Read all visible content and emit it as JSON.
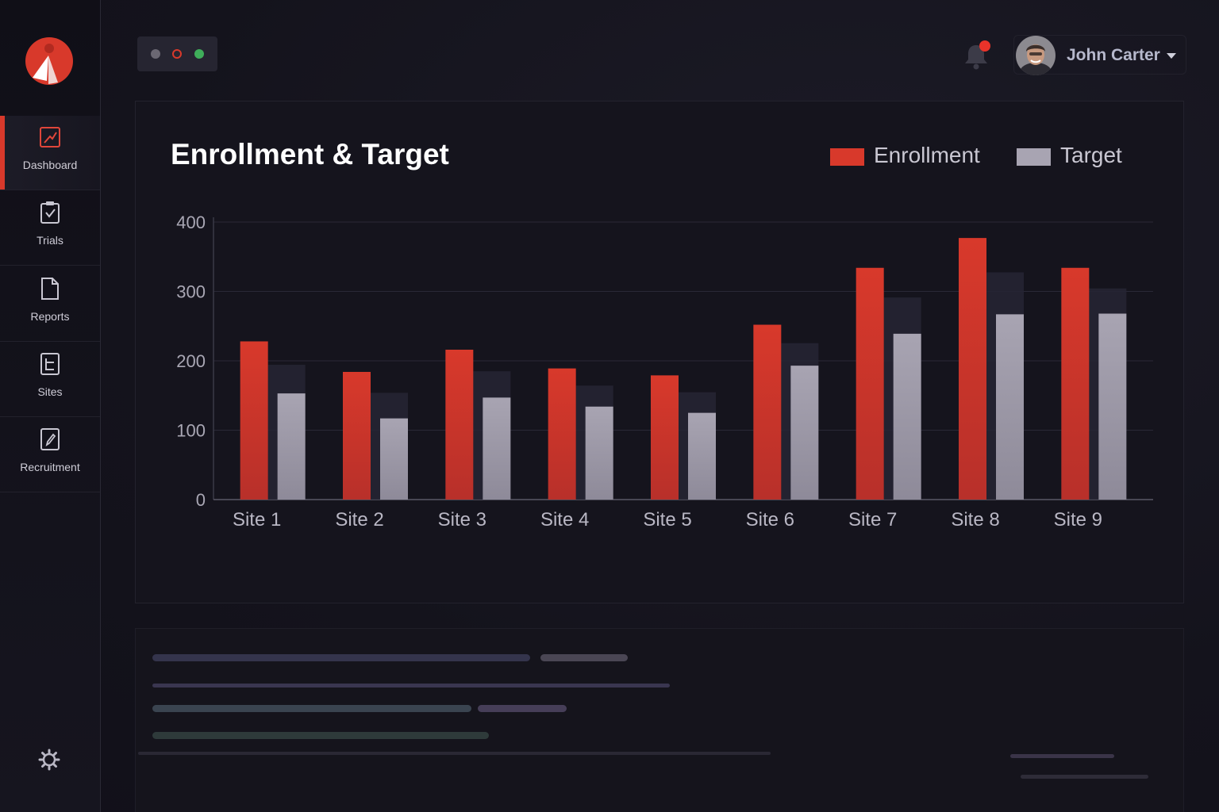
{
  "sidebar": {
    "items": [
      {
        "label": "Dashboard",
        "icon": "chart-edit-icon"
      },
      {
        "label": "Trials",
        "icon": "clipboard-check-icon"
      },
      {
        "label": "Reports",
        "icon": "document-icon"
      },
      {
        "label": "Sites",
        "icon": "list-document-icon"
      },
      {
        "label": "Recruitment",
        "icon": "document-edit-icon"
      }
    ],
    "active": "Dashboard"
  },
  "header": {
    "user_name": "John Carter",
    "notification_badge": true
  },
  "colors": {
    "accent": "#d8392b",
    "enrollment": "#d8392b",
    "target": "#a8a4b2"
  },
  "chart_data": {
    "type": "bar",
    "title": "Enrollment & Target",
    "categories": [
      "Site 1",
      "Site 2",
      "Site 3",
      "Site 4",
      "Site 5",
      "Site 6",
      "Site 7",
      "Site 8",
      "Site 9"
    ],
    "series": [
      {
        "name": "Enrollment",
        "values": [
          228,
          184,
          216,
          189,
          179,
          252,
          334,
          377,
          334
        ]
      },
      {
        "name": "Target",
        "values": [
          153,
          117,
          147,
          134,
          125,
          193,
          239,
          267,
          268
        ]
      }
    ],
    "ylim": [
      0,
      400
    ],
    "yticks": [
      0,
      100,
      200,
      300,
      400
    ],
    "legend": "top-right",
    "grid": true
  }
}
